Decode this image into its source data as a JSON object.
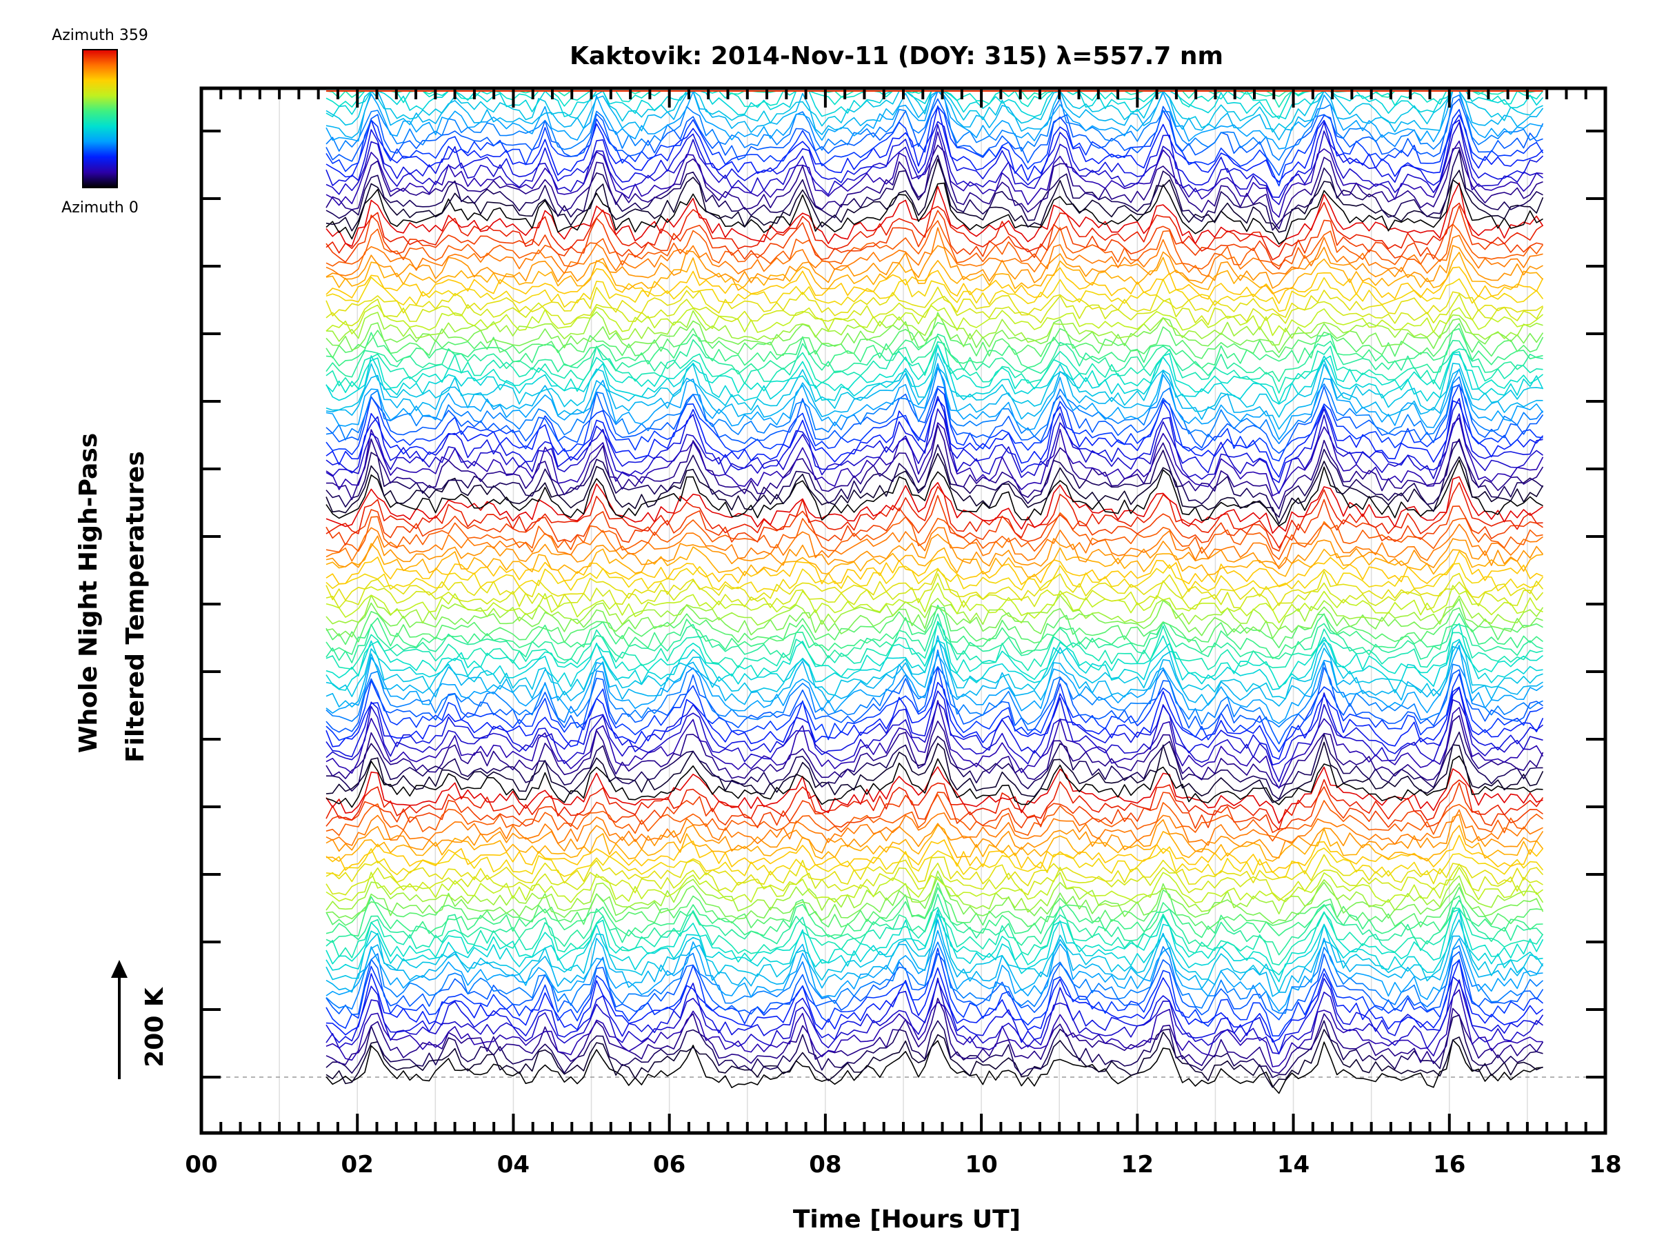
{
  "chart_data": {
    "type": "line",
    "title": "Kaktovik: 2014-Nov-11 (DOY: 315) λ=557.7 nm",
    "xlabel": "Time [Hours UT]",
    "ylabel_line1": "Whole Night High-Pass",
    "ylabel_line2": "Filtered Temperatures",
    "scale_label": "200 K",
    "xlim": [
      0,
      18
    ],
    "x_ticks": [
      "00",
      "02",
      "04",
      "06",
      "08",
      "10",
      "12",
      "14",
      "16",
      "18"
    ],
    "x_tick_values": [
      0,
      2,
      4,
      6,
      8,
      10,
      12,
      14,
      16,
      18
    ],
    "data_time_range": [
      1.6,
      17.2
    ],
    "series_count": 135,
    "series_offset_K": 15,
    "scale_bar_K": 200,
    "colorbar": {
      "top_label": "Azimuth 359",
      "bottom_label": "Azimuth 0",
      "colormap": [
        "#000000",
        "#2b00a8",
        "#0020ff",
        "#00a0ff",
        "#00e0d0",
        "#40f080",
        "#c0f020",
        "#ffd000",
        "#ff7000",
        "#e00000"
      ]
    },
    "common_signal": {
      "description": "shared temperature perturbation features visible in all azimuth series",
      "peak_times_hours": [
        2.2,
        3.2,
        4.4,
        5.1,
        6.3,
        7.7,
        9.0,
        9.45,
        10.3,
        11.0,
        12.35,
        13.1,
        13.8,
        14.4,
        15.5,
        16.1
      ],
      "peak_amplitudes_K": [
        70,
        30,
        45,
        55,
        40,
        48,
        40,
        85,
        35,
        50,
        55,
        30,
        -45,
        60,
        25,
        80
      ]
    }
  }
}
